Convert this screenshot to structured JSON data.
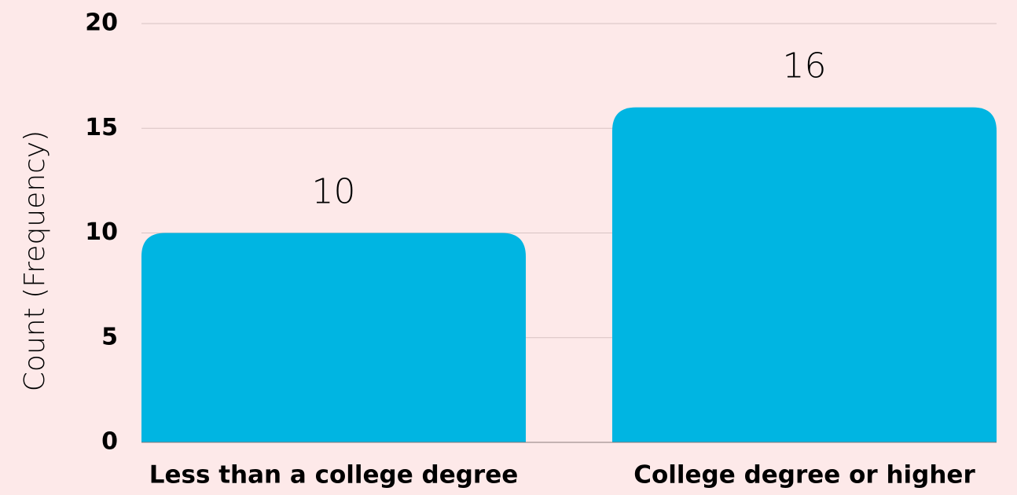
{
  "chart_data": {
    "type": "bar",
    "y_label": "Count (Frequency)",
    "categories": [
      "Less than a college degree",
      "College degree or higher"
    ],
    "values": [
      10,
      16
    ],
    "color": "#00b5e2",
    "ylim": [
      0,
      20
    ],
    "yticks": [
      0,
      5,
      10,
      15,
      20
    ],
    "grid": true
  }
}
